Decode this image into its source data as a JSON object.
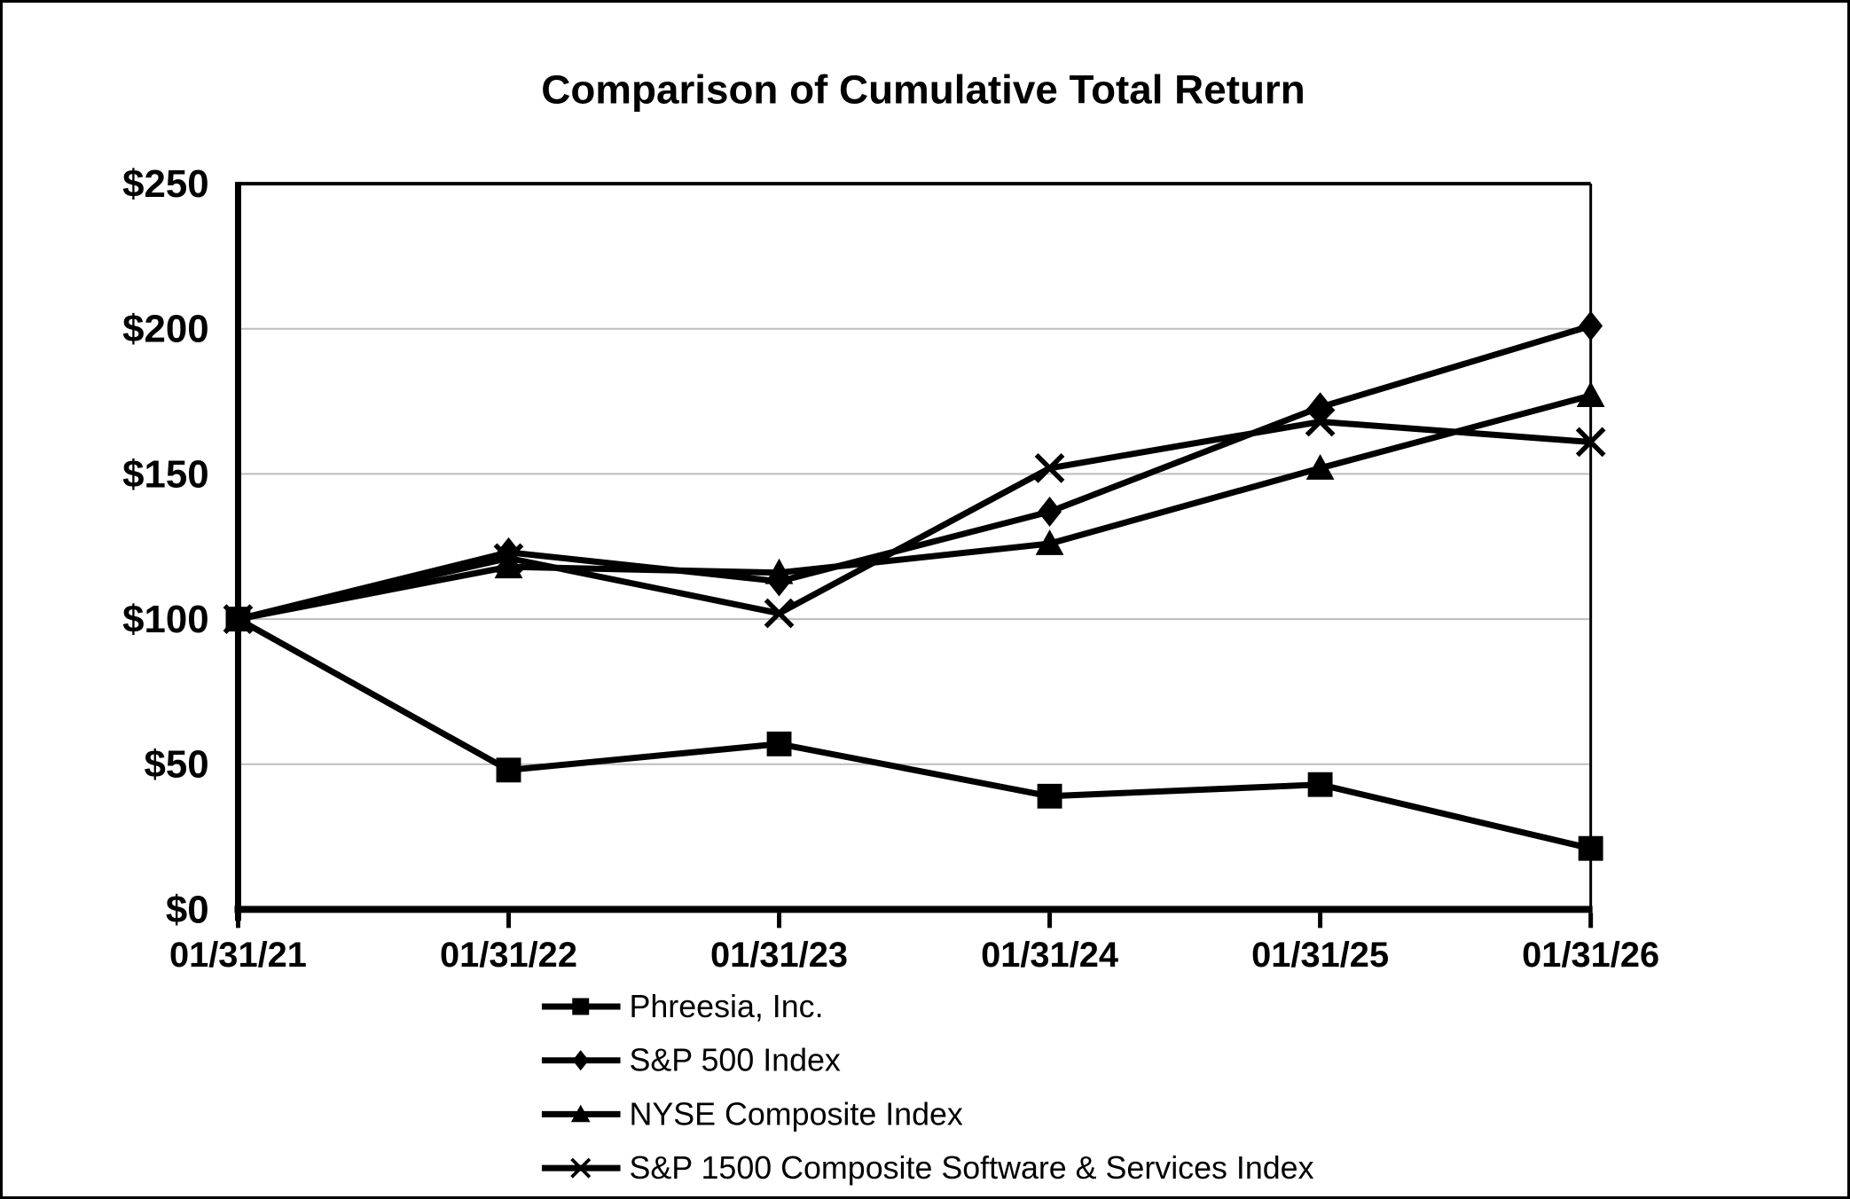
{
  "chart_data": {
    "type": "line",
    "title": "Comparison of Cumulative Total Return",
    "categories": [
      "01/31/21",
      "01/31/22",
      "01/31/23",
      "01/31/24",
      "01/31/25",
      "01/31/26"
    ],
    "y_tick_labels": [
      "$0",
      "$50",
      "$100",
      "$150",
      "$200",
      "$250"
    ],
    "y_tick_values": [
      0,
      50,
      100,
      150,
      200,
      250
    ],
    "ylim": [
      0,
      250
    ],
    "xlabel": "",
    "ylabel": "",
    "grid": "horizontal-gray",
    "legend_position": "bottom-left",
    "series": [
      {
        "name": "Phreesia, Inc.",
        "marker": "square",
        "values": [
          100,
          48,
          57,
          39,
          43,
          21
        ]
      },
      {
        "name": "S&P 500 Index",
        "marker": "diamond",
        "values": [
          100,
          123,
          113,
          137,
          173,
          201
        ]
      },
      {
        "name": "NYSE Composite Index",
        "marker": "triangle",
        "values": [
          100,
          118,
          116,
          126,
          152,
          177
        ]
      },
      {
        "name": "S&P 1500 Composite Software & Services Index",
        "marker": "x",
        "values": [
          100,
          121,
          102,
          152,
          168,
          161
        ]
      }
    ],
    "colors": {
      "series": "#000000",
      "grid": "#bdbdbd",
      "background": "#ffffff",
      "border": "#000000"
    }
  }
}
